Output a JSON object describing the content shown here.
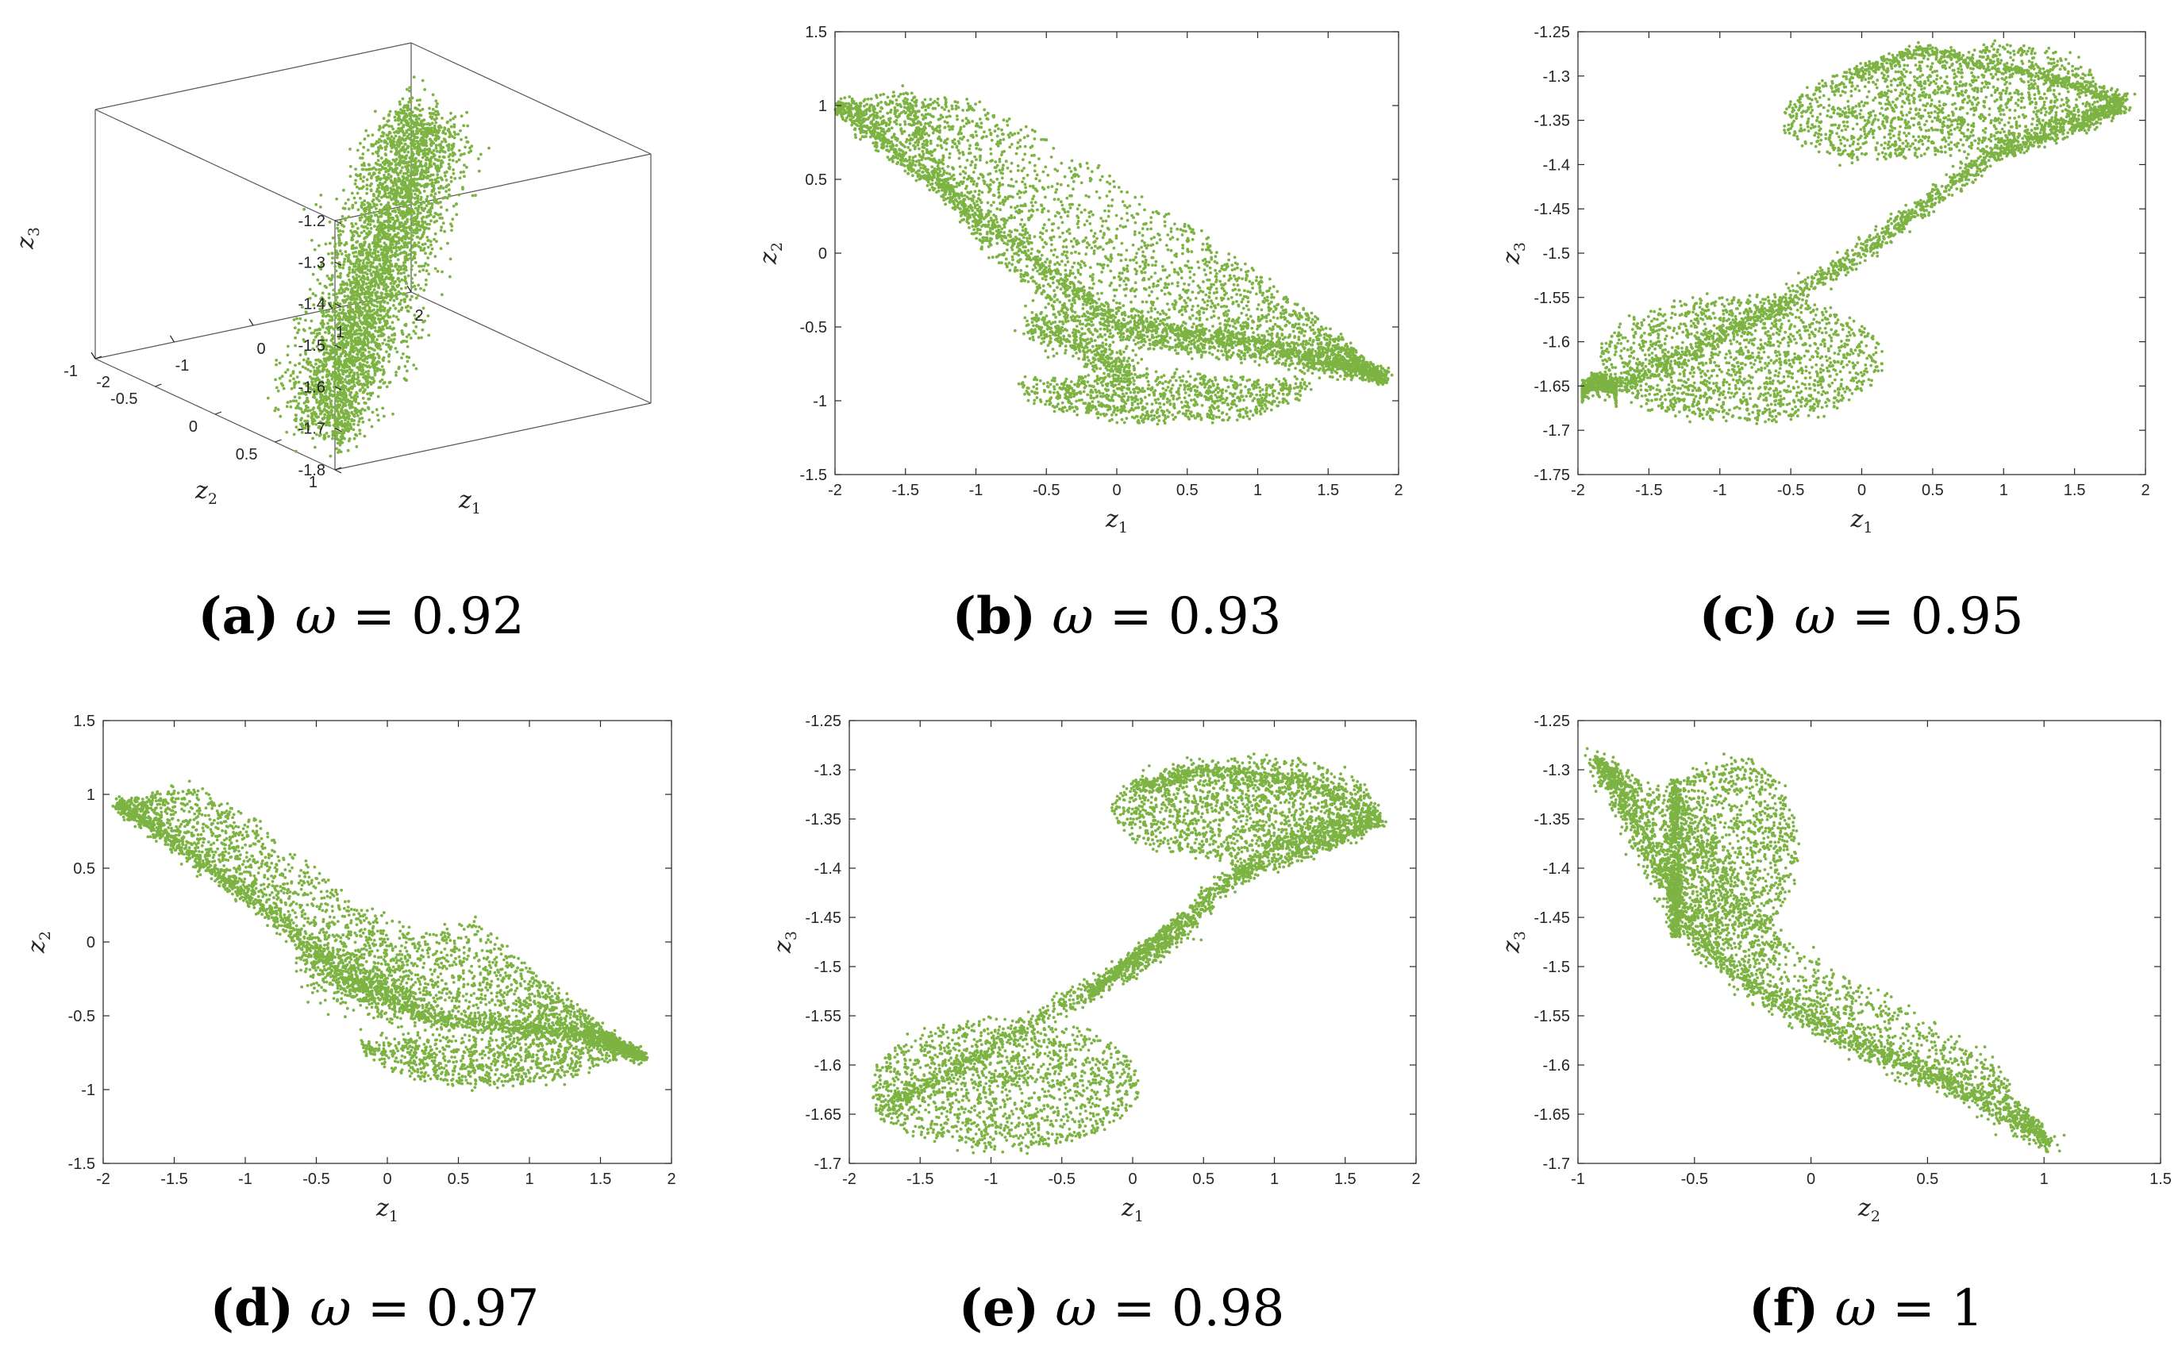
{
  "point_color": "#7CB342",
  "chart_data": [
    {
      "id": "a",
      "type": "scatter3d",
      "caption_letter": "(a)",
      "caption_symbol": "ω",
      "caption_rest": " = 0.92",
      "xlabel": "z",
      "xlabel_sub": "1",
      "ylabel": "z",
      "ylabel_sub": "2",
      "zlabel": "z",
      "zlabel_sub": "3",
      "xlim": [
        -2,
        2
      ],
      "ylim": [
        -1,
        1
      ],
      "zlim": [
        -1.8,
        -1.2
      ],
      "xticks": [
        "-2",
        "-1",
        "0",
        "1",
        "2"
      ],
      "yticks": [
        "-1",
        "-0.5",
        "0",
        "0.5",
        "1"
      ],
      "zticks": [
        "-1.8",
        "-1.7",
        "-1.6",
        "-1.5",
        "-1.4",
        "-1.3",
        "-1.2"
      ],
      "point_count": 4000
    },
    {
      "id": "b",
      "type": "scatter",
      "caption_letter": "(b)",
      "caption_symbol": "ω",
      "caption_rest": " = 0.93",
      "xlabel": "z",
      "xlabel_sub": "1",
      "ylabel": "z",
      "ylabel_sub": "2",
      "xlim": [
        -2,
        2
      ],
      "ylim": [
        -1.5,
        1.5
      ],
      "xticks": [
        "-2",
        "-1.5",
        "-1",
        "-0.5",
        "0",
        "0.5",
        "1",
        "1.5",
        "2"
      ],
      "yticks": [
        "-1.5",
        "-1",
        "-0.5",
        "0",
        "0.5",
        "1",
        "1.5"
      ],
      "point_count": 5000
    },
    {
      "id": "c",
      "type": "scatter",
      "caption_letter": "(c)",
      "caption_symbol": "ω",
      "caption_rest": " = 0.95",
      "xlabel": "z",
      "xlabel_sub": "1",
      "ylabel": "z",
      "ylabel_sub": "3",
      "xlim": [
        -2,
        2
      ],
      "ylim": [
        -1.75,
        -1.25
      ],
      "xticks": [
        "-2",
        "-1.5",
        "-1",
        "-0.5",
        "0",
        "0.5",
        "1",
        "1.5",
        "2"
      ],
      "yticks": [
        "-1.75",
        "-1.7",
        "-1.65",
        "-1.6",
        "-1.55",
        "-1.5",
        "-1.45",
        "-1.4",
        "-1.35",
        "-1.3",
        "-1.25"
      ],
      "point_count": 5000
    },
    {
      "id": "d",
      "type": "scatter",
      "caption_letter": "(d)",
      "caption_symbol": "ω",
      "caption_rest": " = 0.97",
      "xlabel": "z",
      "xlabel_sub": "1",
      "ylabel": "z",
      "ylabel_sub": "2",
      "xlim": [
        -2,
        2
      ],
      "ylim": [
        -1.5,
        1.5
      ],
      "xticks": [
        "-2",
        "-1.5",
        "-1",
        "-0.5",
        "0",
        "0.5",
        "1",
        "1.5",
        "2"
      ],
      "yticks": [
        "-1.5",
        "-1",
        "-0.5",
        "0",
        "0.5",
        "1",
        "1.5"
      ],
      "point_count": 5000
    },
    {
      "id": "e",
      "type": "scatter",
      "caption_letter": "(e)",
      "caption_symbol": "ω",
      "caption_rest": " = 0.98",
      "xlabel": "z",
      "xlabel_sub": "1",
      "ylabel": "z",
      "ylabel_sub": "3",
      "xlim": [
        -2,
        2
      ],
      "ylim": [
        -1.7,
        -1.25
      ],
      "xticks": [
        "-2",
        "-1.5",
        "-1",
        "-0.5",
        "0",
        "0.5",
        "1",
        "1.5",
        "2"
      ],
      "yticks": [
        "-1.7",
        "-1.65",
        "-1.6",
        "-1.55",
        "-1.5",
        "-1.45",
        "-1.4",
        "-1.35",
        "-1.3",
        "-1.25"
      ],
      "point_count": 5000
    },
    {
      "id": "f",
      "type": "scatter",
      "caption_letter": "(f)",
      "caption_symbol": "ω",
      "caption_rest": " = 1",
      "xlabel": "z",
      "xlabel_sub": "2",
      "ylabel": "z",
      "ylabel_sub": "3",
      "xlim": [
        -1,
        1.5
      ],
      "ylim": [
        -1.7,
        -1.25
      ],
      "xticks": [
        "-1",
        "-0.5",
        "0",
        "0.5",
        "1",
        "1.5"
      ],
      "yticks": [
        "-1.7",
        "-1.65",
        "-1.6",
        "-1.55",
        "-1.5",
        "-1.45",
        "-1.4",
        "-1.35",
        "-1.3",
        "-1.25"
      ],
      "point_count": 5000
    }
  ]
}
